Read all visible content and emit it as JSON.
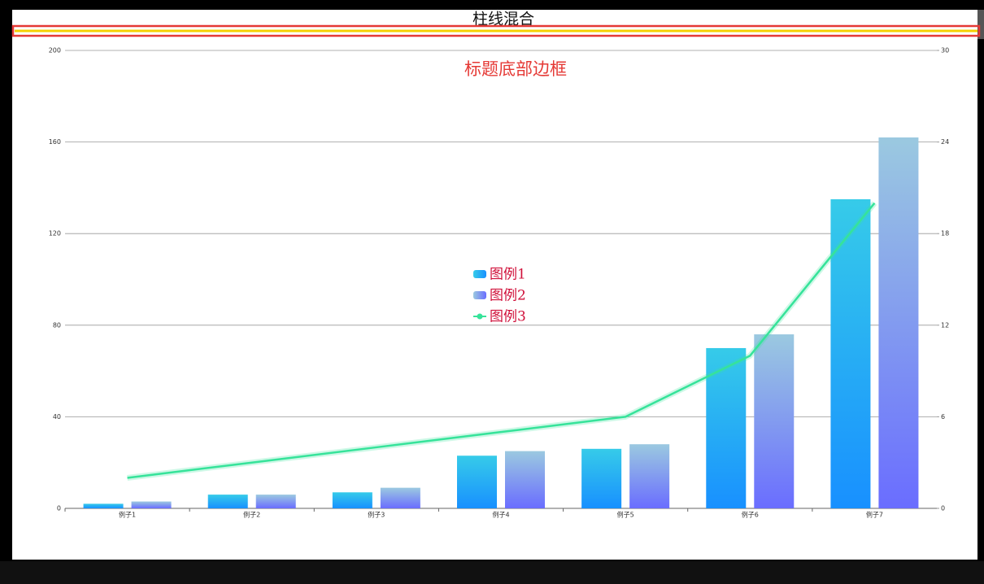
{
  "chart_data": {
    "type": "bar-line",
    "title": "柱线混合",
    "annotation": "标题底部边框",
    "categories": [
      "例子1",
      "例子2",
      "例子3",
      "例子4",
      "例子5",
      "例子6",
      "例子7"
    ],
    "series": [
      {
        "name": "图例1",
        "type": "bar",
        "color": [
          "#36cbe9",
          "#1890ff"
        ],
        "values": [
          2,
          6,
          7,
          23,
          26,
          70,
          135
        ]
      },
      {
        "name": "图例2",
        "type": "bar",
        "color": [
          "#9bc9e0",
          "#6a6dff"
        ],
        "values": [
          3,
          6,
          9,
          25,
          28,
          76,
          162
        ]
      },
      {
        "name": "图例3",
        "type": "line",
        "axis": "y2",
        "color": "#36e39a",
        "values": [
          2,
          3,
          4,
          5,
          6,
          10,
          20
        ]
      }
    ],
    "ylim": [
      0,
      200
    ],
    "yticks": [
      0,
      40,
      80,
      120,
      160,
      200
    ],
    "y2lim": [
      0,
      30
    ],
    "y2ticks": [
      0,
      6,
      12,
      18,
      24,
      30
    ],
    "grid": true,
    "legend": "center"
  }
}
